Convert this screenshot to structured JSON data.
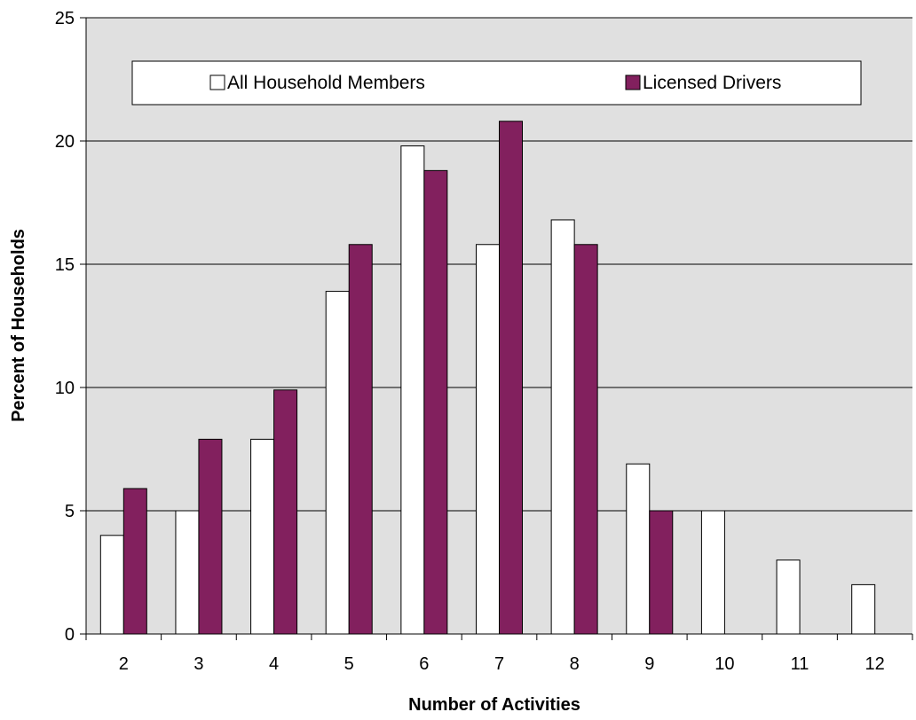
{
  "chart_data": {
    "type": "bar",
    "title": "",
    "xlabel": "Number of Activities",
    "ylabel": "Percent of Households",
    "categories": [
      "2",
      "3",
      "4",
      "5",
      "6",
      "7",
      "8",
      "9",
      "10",
      "11",
      "12"
    ],
    "series": [
      {
        "name": "All Household Members",
        "color": "#ffffff",
        "values": [
          4,
          5,
          7.9,
          13.9,
          19.8,
          15.8,
          16.8,
          6.9,
          5,
          3,
          2
        ]
      },
      {
        "name": "Licensed Drivers",
        "color": "#82205e",
        "values": [
          5.9,
          7.9,
          9.9,
          15.8,
          18.8,
          20.8,
          15.8,
          5,
          null,
          null,
          null
        ]
      }
    ],
    "ylim": [
      0,
      25
    ],
    "yticks": [
      0,
      5,
      10,
      15,
      20,
      25
    ],
    "grid": true,
    "plot_background": "#e0e0e0",
    "legend_position": "top"
  }
}
